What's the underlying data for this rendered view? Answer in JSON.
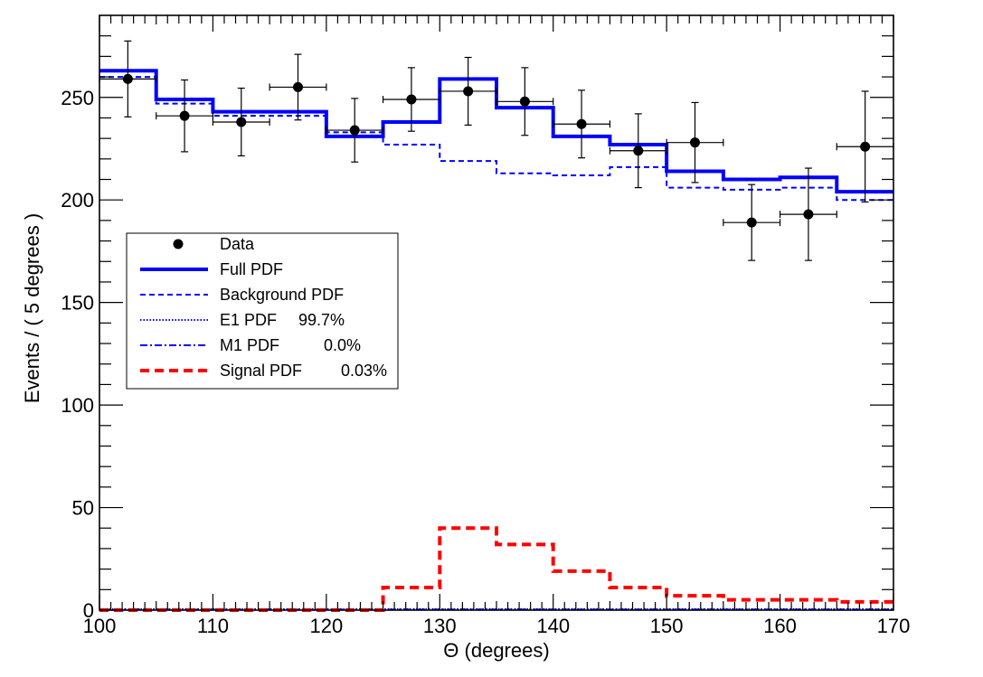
{
  "chart_data": {
    "type": "line",
    "title": "",
    "xlabel": "Θ (degrees)",
    "ylabel": "Events / ( 5 degrees )",
    "xlim": [
      100,
      170
    ],
    "ylim": [
      0,
      290
    ],
    "x_ticks": [
      100,
      110,
      120,
      130,
      140,
      150,
      160,
      170
    ],
    "y_ticks": [
      0,
      50,
      100,
      150,
      200,
      250
    ],
    "bin_edges": [
      100,
      105,
      110,
      115,
      120,
      125,
      130,
      135,
      140,
      145,
      150,
      155,
      160,
      165,
      170
    ],
    "data_points": {
      "name": "Data",
      "x": [
        102.5,
        107.5,
        112.5,
        117.5,
        122.5,
        127.5,
        132.5,
        137.5,
        142.5,
        147.5,
        152.5,
        157.5,
        162.5,
        167.5
      ],
      "y": [
        259,
        241,
        238,
        255,
        234,
        249,
        253,
        248,
        237,
        224,
        228,
        189,
        193,
        226
      ],
      "y_err": [
        18.5,
        17.5,
        16.5,
        16.0,
        15.5,
        15.5,
        16.5,
        16.5,
        16.5,
        18.0,
        19.5,
        18.5,
        22.5,
        27.0
      ],
      "x_err": 2.5
    },
    "series": [
      {
        "name": "Full PDF",
        "style": "solid",
        "color": "#0000ff",
        "values": [
          263,
          249,
          243,
          243,
          231,
          238,
          259,
          245,
          231,
          227,
          214,
          210,
          211,
          204
        ]
      },
      {
        "name": "Background PDF",
        "style": "dashed",
        "color": "#0000ff",
        "values": [
          260,
          247,
          241,
          241,
          233,
          227,
          219,
          213,
          212,
          216,
          206,
          205,
          206,
          200
        ]
      },
      {
        "name": "E1 PDF",
        "style": "dotted",
        "color": "#0000ff",
        "values": [
          0.5,
          0.5,
          0.5,
          0.5,
          0.5,
          0.5,
          0.5,
          0.5,
          0.5,
          0.5,
          0.5,
          0.5,
          0.5,
          0.5
        ]
      },
      {
        "name": "M1 PDF",
        "style": "dashdot",
        "color": "#0000ff",
        "values": [
          0.3,
          0.3,
          0.3,
          0.3,
          0.3,
          0.3,
          0.3,
          0.3,
          0.3,
          0.3,
          0.3,
          0.3,
          0.3,
          0.3
        ]
      },
      {
        "name": "Signal PDF",
        "style": "dashed-thick",
        "color": "#ff0000",
        "values": [
          0,
          0,
          0,
          0,
          0,
          11,
          40,
          32,
          19,
          11,
          7,
          5,
          5,
          4
        ]
      }
    ],
    "legend": {
      "placement": "middle-left",
      "entries": [
        {
          "label": "Data",
          "value": ""
        },
        {
          "label": "Full PDF",
          "value": ""
        },
        {
          "label": "Background PDF",
          "value": ""
        },
        {
          "label": "E1 PDF",
          "value": "99.7%"
        },
        {
          "label": "M1 PDF",
          "value": "0.0%"
        },
        {
          "label": "Signal PDF",
          "value": "0.03%"
        }
      ]
    },
    "grid": false
  }
}
